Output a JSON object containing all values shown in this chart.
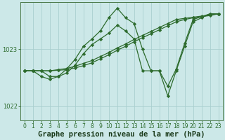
{
  "title": "Graphe pression niveau de la mer (hPa)",
  "xlabel_hours": [
    0,
    1,
    2,
    3,
    4,
    5,
    6,
    7,
    8,
    9,
    10,
    11,
    12,
    13,
    14,
    15,
    16,
    17,
    18,
    19,
    20,
    21,
    22,
    23
  ],
  "line1": [
    1022.62,
    1022.62,
    1022.52,
    1022.47,
    1022.52,
    1022.65,
    1022.82,
    1023.05,
    1023.18,
    1023.32,
    1023.55,
    1023.72,
    1023.55,
    1023.45,
    1023.0,
    1022.62,
    1022.62,
    1022.18,
    1022.62,
    1023.05,
    1023.48,
    1023.55,
    1023.62,
    1023.62
  ],
  "line2": [
    1022.62,
    1022.62,
    1022.62,
    1022.52,
    1022.52,
    1022.58,
    1022.72,
    1022.92,
    1023.08,
    1023.18,
    1023.28,
    1023.42,
    1023.32,
    1023.18,
    1022.62,
    1022.62,
    1022.62,
    1022.35,
    1022.65,
    1023.1,
    1023.52,
    1023.57,
    1023.62,
    1023.62
  ],
  "line3": [
    1022.62,
    1022.62,
    1022.62,
    1022.62,
    1022.64,
    1022.66,
    1022.7,
    1022.75,
    1022.8,
    1022.87,
    1022.94,
    1023.02,
    1023.09,
    1023.17,
    1023.24,
    1023.31,
    1023.38,
    1023.45,
    1023.52,
    1023.54,
    1023.56,
    1023.58,
    1023.6,
    1023.62
  ],
  "line4": [
    1022.62,
    1022.62,
    1022.62,
    1022.62,
    1022.63,
    1022.64,
    1022.67,
    1022.71,
    1022.76,
    1022.83,
    1022.9,
    1022.98,
    1023.05,
    1023.13,
    1023.2,
    1023.27,
    1023.34,
    1023.41,
    1023.48,
    1023.52,
    1023.55,
    1023.57,
    1023.59,
    1023.62
  ],
  "line_color": "#2d6b2d",
  "bg_color": "#cce8e8",
  "grid_color": "#aacfcf",
  "ylim": [
    1021.75,
    1023.82
  ],
  "yticks": [
    1022.0,
    1023.0
  ],
  "marker": "D",
  "marker_size": 2.2,
  "linewidth": 0.9,
  "title_fontsize": 7.5,
  "tick_fontsize": 5.5
}
